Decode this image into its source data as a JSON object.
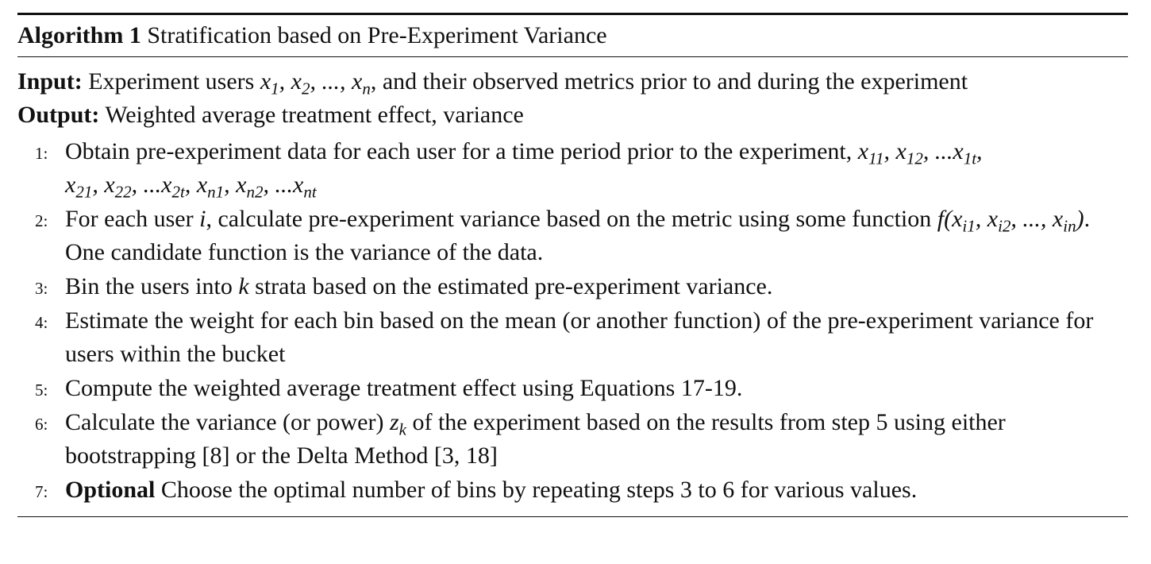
{
  "algorithm": {
    "label": "Algorithm 1",
    "title": "Stratification based on Pre-Experiment Variance"
  },
  "input": {
    "label": "Input:",
    "text_a": "Experiment users",
    "vars": "x1, x2, ..., xn",
    "text_b": ", and their observed metrics prior to and during the experiment"
  },
  "output": {
    "label": "Output:",
    "text": "Weighted average treatment effect, variance"
  },
  "steps": [
    {
      "num": "1:",
      "text_a": "Obtain pre-experiment data for each user for a time period prior to the experiment,",
      "math": "x11, x12, ...x1t, x21, x22, ...x2t, xn1, xn2, ...xnt"
    },
    {
      "num": "2:",
      "text_a": "For each user",
      "var": "i",
      "text_b": ", calculate pre-experiment variance based on the metric using some function",
      "math": "f(xi1, xi2, ..., xin)",
      "text_c": ". One candidate function is the variance of the data."
    },
    {
      "num": "3:",
      "text_a": "Bin the users into",
      "var": "k",
      "text_b": "strata based on the estimated pre-experiment variance."
    },
    {
      "num": "4:",
      "text": "Estimate the weight for each bin based on the mean (or another function) of the pre-experiment variance for users within the bucket"
    },
    {
      "num": "5:",
      "text": "Compute the weighted average treatment effect using Equations 17-19."
    },
    {
      "num": "6:",
      "text_a": "Calculate the variance (or power)",
      "var": "zk",
      "text_b": "of the experiment based on the results from step 5 using either bootstrapping [8] or the Delta Method [3, 18]"
    },
    {
      "num": "7:",
      "keyword": "Optional",
      "text": "Choose the optimal number of bins by repeating steps 3 to 6 for various values."
    }
  ]
}
